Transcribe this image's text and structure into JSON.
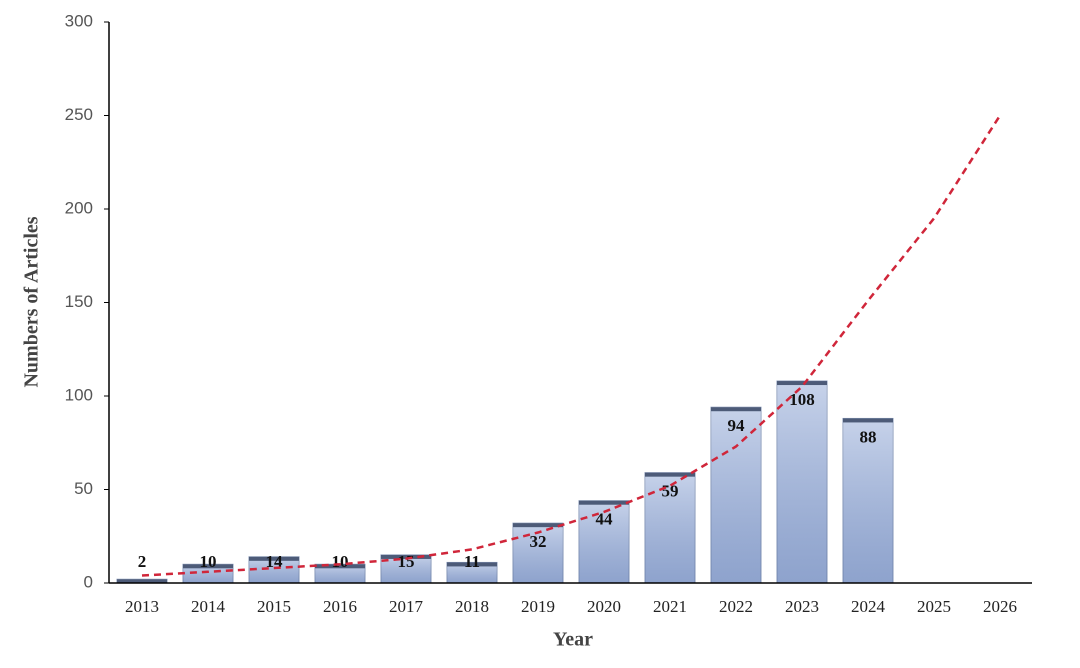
{
  "chart_data": {
    "type": "bar",
    "xlabel": "Year",
    "ylabel": "Numbers of Articles",
    "categories": [
      "2013",
      "2014",
      "2015",
      "2016",
      "2017",
      "2018",
      "2019",
      "2020",
      "2021",
      "2022",
      "2023",
      "2024",
      "2025",
      "2026"
    ],
    "series": [
      {
        "type": "bar",
        "color": "#a9bbdf",
        "values": [
          2,
          10,
          14,
          10,
          15,
          11,
          32,
          44,
          59,
          94,
          108,
          88,
          null,
          null
        ]
      },
      {
        "type": "line",
        "color": "#d0263a",
        "dashed": true,
        "values": [
          4,
          6,
          8,
          10,
          13,
          18,
          27,
          38,
          52,
          73,
          105,
          151,
          195,
          250
        ]
      }
    ],
    "ylim": [
      0,
      300
    ],
    "yticks": [
      0,
      50,
      100,
      150,
      200,
      250,
      300
    ],
    "grid": false
  }
}
